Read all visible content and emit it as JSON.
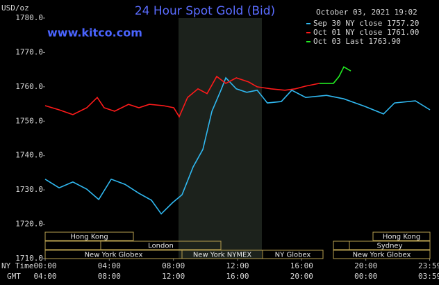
{
  "chart_data": {
    "type": "line",
    "title": "24 Hour Spot Gold (Bid)",
    "timestamp": "October 03, 2021 19:02",
    "website": "www.kitco.com",
    "y_label": "USD/oz",
    "x_row_labels": [
      "NY Time",
      "GMT"
    ],
    "xlim": [
      0,
      24
    ],
    "ylim": [
      1710,
      1780
    ],
    "yticks": [
      {
        "value": 1780,
        "label": "1780.0"
      },
      {
        "value": 1770,
        "label": "1770.0"
      },
      {
        "value": 1760,
        "label": "1760.0"
      },
      {
        "value": 1750,
        "label": "1750.0"
      },
      {
        "value": 1740,
        "label": "1740.0"
      },
      {
        "value": 1730,
        "label": "1730.0"
      },
      {
        "value": 1720,
        "label": "1720.0"
      },
      {
        "value": 1710,
        "label": "1710.0"
      }
    ],
    "xticks": [
      {
        "value": 0,
        "label": "00:00"
      },
      {
        "value": 4,
        "label": "04:00"
      },
      {
        "value": 8,
        "label": "08:00"
      },
      {
        "value": 12,
        "label": "12:00"
      },
      {
        "value": 16,
        "label": "16:00"
      },
      {
        "value": 20,
        "label": "20:00"
      },
      {
        "value": 23.98,
        "label": "23:59"
      }
    ],
    "x2ticks": [
      {
        "value": 0,
        "label": "04:00"
      },
      {
        "value": 4,
        "label": "08:00"
      },
      {
        "value": 8,
        "label": "12:00"
      },
      {
        "value": 12,
        "label": "16:00"
      },
      {
        "value": 16,
        "label": "20:00"
      },
      {
        "value": 20,
        "label": "00:00"
      },
      {
        "value": 23.98,
        "label": "03:59"
      }
    ],
    "sessions": [
      "Hong Kong",
      "London",
      "New York Globex",
      "New York NYMEX",
      "NY Globex",
      "Hong Kong",
      "Sydney",
      "New York Globex"
    ],
    "series": [
      {
        "name": "Sep 30 NY close 1757.20",
        "color": "#30b8f0",
        "x": [
          0,
          0.87,
          1.73,
          2.6,
          3.34,
          4.12,
          4.98,
          5.85,
          6.63,
          7.24,
          7.93,
          8.54,
          9.23,
          9.84,
          10.4,
          10.96,
          11.27,
          11.92,
          12.57,
          13.22,
          13.86,
          14.73,
          15.38,
          16.25,
          17.55,
          18.63,
          19.93,
          21.1,
          21.79,
          23.09,
          24
        ],
        "values": [
          1733.1,
          1730.6,
          1732.3,
          1730.2,
          1727.2,
          1733.1,
          1731.6,
          1729.0,
          1727.0,
          1723.0,
          1726.2,
          1728.6,
          1736.7,
          1741.8,
          1752.9,
          1759.0,
          1762.6,
          1759.4,
          1758.4,
          1759.0,
          1755.3,
          1755.7,
          1759.0,
          1756.9,
          1757.5,
          1756.5,
          1754.3,
          1752.1,
          1755.3,
          1755.9,
          1753.3
        ]
      },
      {
        "name": "Oct 01 NY close 1761.00",
        "color": "#ff1a1a",
        "x": [
          0,
          0.87,
          1.73,
          2.6,
          3.25,
          3.68,
          4.33,
          5.2,
          5.85,
          6.5,
          7.37,
          8.02,
          8.36,
          8.88,
          9.53,
          10.1,
          10.7,
          11.27,
          11.92,
          12.69,
          13.22,
          14.08,
          14.95,
          15.6,
          16.25,
          17.11
        ],
        "values": [
          1754.5,
          1753.3,
          1751.9,
          1753.9,
          1756.9,
          1753.9,
          1752.9,
          1754.9,
          1753.9,
          1754.9,
          1754.5,
          1753.9,
          1751.3,
          1756.9,
          1759.4,
          1758.0,
          1763.0,
          1761.0,
          1762.6,
          1761.4,
          1760.0,
          1759.4,
          1759.0,
          1759.4,
          1760.2,
          1761.0
        ]
      },
      {
        "name": "Oct 03 Last 1763.90",
        "color": "#22ee22",
        "x": [
          17.11,
          17.98,
          18.33,
          18.63,
          19.06
        ],
        "values": [
          1761.0,
          1761.0,
          1763.0,
          1765.8,
          1764.6
        ]
      }
    ]
  }
}
